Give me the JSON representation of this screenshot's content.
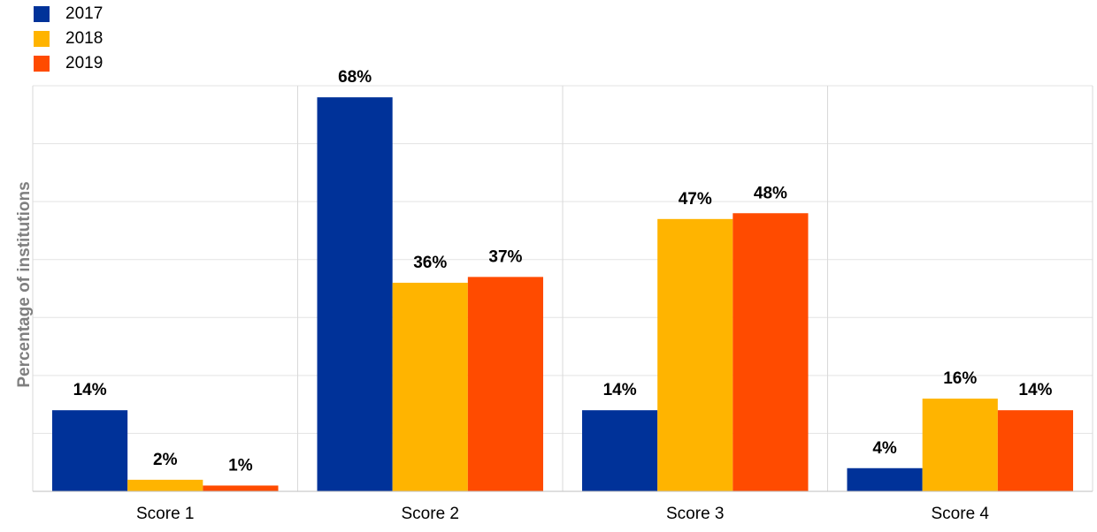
{
  "chart_data": {
    "type": "bar",
    "categories": [
      "Score 1",
      "Score 2",
      "Score 3",
      "Score 4"
    ],
    "series": [
      {
        "name": "2017",
        "color": "#003299",
        "values": [
          14,
          68,
          14,
          4
        ]
      },
      {
        "name": "2018",
        "color": "#FFB400",
        "values": [
          2,
          36,
          47,
          16
        ]
      },
      {
        "name": "2019",
        "color": "#FF4B00",
        "values": [
          1,
          37,
          48,
          14
        ]
      }
    ],
    "data_labels": [
      [
        "14%",
        "68%",
        "14%",
        "4%"
      ],
      [
        "2%",
        "36%",
        "47%",
        "16%"
      ],
      [
        "1%",
        "37%",
        "48%",
        "14%"
      ]
    ],
    "title": "",
    "xlabel": "",
    "ylabel": "Percentage of institutions",
    "ylim": [
      0,
      70
    ],
    "grid": true,
    "legend_position": "top-left"
  }
}
